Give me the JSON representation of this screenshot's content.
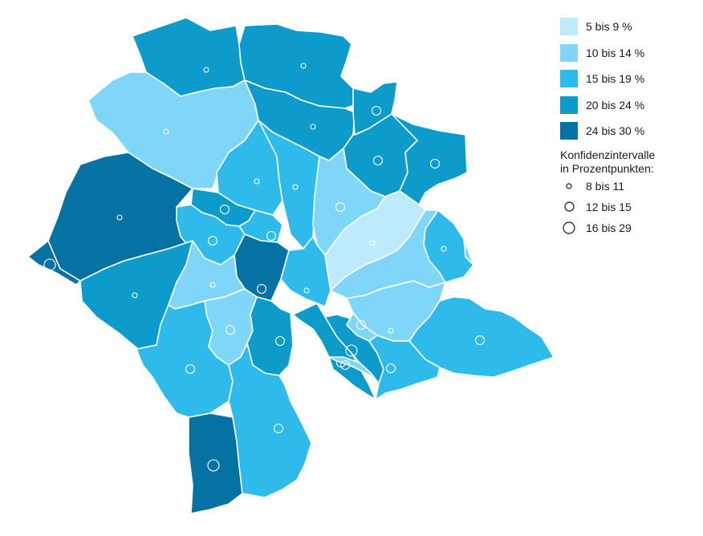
{
  "map": {
    "legend": {
      "classes": [
        {
          "label": "5 bis 9 %",
          "color": "#bdeafd"
        },
        {
          "label": "10 bis 14 %",
          "color": "#7fd6f8"
        },
        {
          "label": "15 bis 19 %",
          "color": "#2ebbec"
        },
        {
          "label": "20 bis 24 %",
          "color": "#0d9bcc"
        },
        {
          "label": "24 bis 30 %",
          "color": "#0672a3"
        }
      ],
      "ci_title_line1": "Konfidenzintervalle",
      "ci_title_line2": "in Prozentpunkten:",
      "ci_classes": [
        {
          "label": "8 bis 11"
        },
        {
          "label": "12 bis 15"
        },
        {
          "label": "16 bis 29"
        }
      ]
    },
    "districts": [
      {
        "class": 3,
        "ci": 0
      },
      {
        "class": 3,
        "ci": 0
      },
      {
        "class": 1,
        "ci": 0
      },
      {
        "class": 3,
        "ci": 0
      },
      {
        "class": 3,
        "ci": 1
      },
      {
        "class": 3,
        "ci": 1
      },
      {
        "class": 3,
        "ci": 1
      },
      {
        "class": 4,
        "ci": 0
      },
      {
        "class": 2,
        "ci": 0
      },
      {
        "class": 2,
        "ci": 0
      },
      {
        "class": 1,
        "ci": 1
      },
      {
        "class": 0,
        "ci": 0
      },
      {
        "class": 3,
        "ci": 1
      },
      {
        "class": 2,
        "ci": 1
      },
      {
        "class": 2,
        "ci": 1
      },
      {
        "class": 4,
        "ci": 1
      },
      {
        "class": 3,
        "ci": 0
      },
      {
        "class": 1,
        "ci": 0
      },
      {
        "class": 2,
        "ci": 0
      },
      {
        "class": 1,
        "ci": 0
      },
      {
        "class": 1,
        "ci": 1
      },
      {
        "class": 1,
        "ci": 0
      },
      {
        "class": 4,
        "ci": 2
      },
      {
        "class": 3,
        "ci": 1
      },
      {
        "class": 3,
        "ci": 1
      },
      {
        "class": 3,
        "ci": 2
      },
      {
        "class": 2,
        "ci": 1
      },
      {
        "class": 2,
        "ci": 1
      },
      {
        "class": 1,
        "ci": 1
      },
      {
        "class": 1,
        "ci": 1
      },
      {
        "class": 2,
        "ci": 1
      },
      {
        "class": 2,
        "ci": 1
      },
      {
        "class": 2,
        "ci": 0
      },
      {
        "class": 4,
        "ci": 2
      }
    ]
  }
}
